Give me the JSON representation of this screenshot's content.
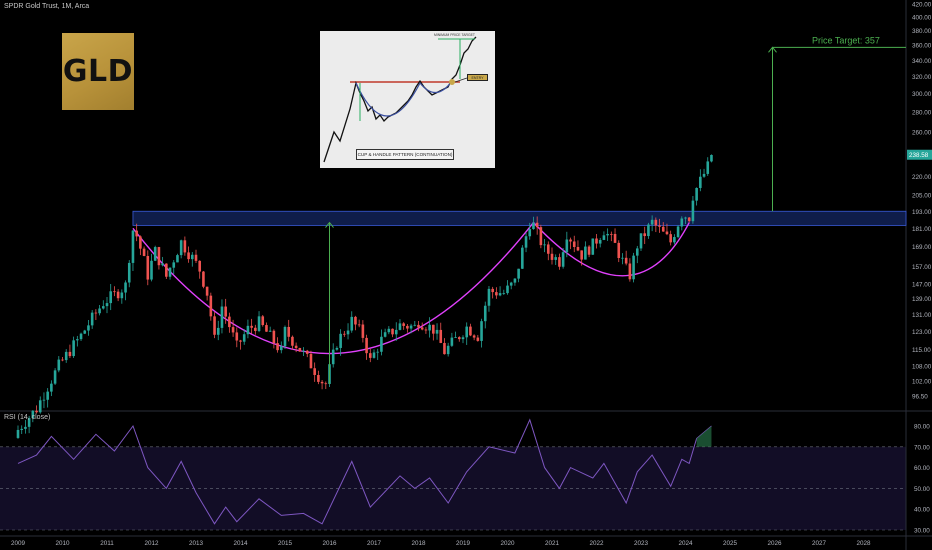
{
  "header": {
    "symbol_title": "SPDR Gold Trust, 1M, Arca",
    "rsi_title": "RSI (14, close)"
  },
  "logo": {
    "text": "GLD",
    "color": "#b8923a"
  },
  "annotations": {
    "price_target": "Price Target: 357",
    "price_target_color": "#4caf50"
  },
  "inset": {
    "caption": "CUP & HANDLE PATTERN (CONTINUATION)",
    "target_label": "MINIMUM PRICE TARGET",
    "tag_label": "ENTRY"
  },
  "chart_data": [
    {
      "type": "candlestick",
      "title": "SPDR Gold Trust, 1M, Arca",
      "y_scale": "log",
      "ylim": [
        91,
        430
      ],
      "y_ticks": [
        96.5,
        102.0,
        108.0,
        115.0,
        123.0,
        131.0,
        139.0,
        147.0,
        157.0,
        169.0,
        181.0,
        193.0,
        205.0,
        220.0,
        240.0,
        260.0,
        280.0,
        300.0,
        320.0,
        340.0,
        360.0,
        380.0,
        400.0,
        420.0
      ],
      "x_ticks": [
        "2009",
        "2010",
        "2011",
        "2012",
        "2013",
        "2014",
        "2015",
        "2016",
        "2017",
        "2018",
        "2019",
        "2020",
        "2021",
        "2022",
        "2023",
        "2024",
        "2025",
        "2026",
        "2027",
        "2028"
      ],
      "last_price": "238.58",
      "up_color": "#26a69a",
      "down_color": "#ef5350",
      "resistance_zone": [
        183,
        193
      ],
      "price_target": 357,
      "close_path": [
        [
          "2009-01",
          85
        ],
        [
          "2009-06",
          92
        ],
        [
          "2009-12",
          108
        ],
        [
          "2010-06",
          121
        ],
        [
          "2010-12",
          137
        ],
        [
          "2011-03",
          141
        ],
        [
          "2011-06",
          146
        ],
        [
          "2011-08",
          180
        ],
        [
          "2011-09",
          176
        ],
        [
          "2011-12",
          152
        ],
        [
          "2012-02",
          166
        ],
        [
          "2012-05",
          151
        ],
        [
          "2012-09",
          172
        ],
        [
          "2012-12",
          162
        ],
        [
          "2013-02",
          155
        ],
        [
          "2013-04",
          142
        ],
        [
          "2013-06",
          119
        ],
        [
          "2013-08",
          135
        ],
        [
          "2013-12",
          116
        ],
        [
          "2014-03",
          124
        ],
        [
          "2014-06",
          127
        ],
        [
          "2014-12",
          114
        ],
        [
          "2015-01",
          123
        ],
        [
          "2015-06",
          113
        ],
        [
          "2015-11",
          102
        ],
        [
          "2015-12",
          101
        ],
        [
          "2016-03",
          118
        ],
        [
          "2016-07",
          128
        ],
        [
          "2016-10",
          121
        ],
        [
          "2016-12",
          110
        ],
        [
          "2017-03",
          119
        ],
        [
          "2017-08",
          126
        ],
        [
          "2017-12",
          125
        ],
        [
          "2018-01",
          128
        ],
        [
          "2018-05",
          124
        ],
        [
          "2018-08",
          114
        ],
        [
          "2018-12",
          121
        ],
        [
          "2019-02",
          125
        ],
        [
          "2019-05",
          121
        ],
        [
          "2019-08",
          143
        ],
        [
          "2019-12",
          142
        ],
        [
          "2020-03",
          148
        ],
        [
          "2020-07",
          185
        ],
        [
          "2020-08",
          183
        ],
        [
          "2020-11",
          167
        ],
        [
          "2021-03",
          160
        ],
        [
          "2021-05",
          178
        ],
        [
          "2021-09",
          164
        ],
        [
          "2021-12",
          170
        ],
        [
          "2022-03",
          180
        ],
        [
          "2022-06",
          170
        ],
        [
          "2022-09",
          155
        ],
        [
          "2022-10",
          152
        ],
        [
          "2022-12",
          170
        ],
        [
          "2023-04",
          185
        ],
        [
          "2023-09",
          172
        ],
        [
          "2023-12",
          191
        ],
        [
          "2024-02",
          189
        ],
        [
          "2024-03",
          205
        ],
        [
          "2024-05",
          216
        ],
        [
          "2024-07",
          228
        ],
        [
          "2024-08",
          238.58
        ]
      ]
    },
    {
      "type": "line",
      "title": "RSI (14, close)",
      "ylim": [
        27,
        86
      ],
      "y_ticks": [
        30.0,
        40.0,
        50.0,
        60.0,
        70.0,
        80.0
      ],
      "overbought": 70,
      "oversold": 30,
      "line_color": "#7e57c2",
      "points": [
        [
          "2009-01",
          62
        ],
        [
          "2009-06",
          66
        ],
        [
          "2009-10",
          75
        ],
        [
          "2010-04",
          64
        ],
        [
          "2010-10",
          76
        ],
        [
          "2011-03",
          68
        ],
        [
          "2011-08",
          80
        ],
        [
          "2011-12",
          60
        ],
        [
          "2012-05",
          50
        ],
        [
          "2012-09",
          63
        ],
        [
          "2013-01",
          48
        ],
        [
          "2013-06",
          33
        ],
        [
          "2013-09",
          41
        ],
        [
          "2013-12",
          34
        ],
        [
          "2014-06",
          45
        ],
        [
          "2014-12",
          37
        ],
        [
          "2015-06",
          38
        ],
        [
          "2015-11",
          33
        ],
        [
          "2016-07",
          63
        ],
        [
          "2016-12",
          41
        ],
        [
          "2017-08",
          56
        ],
        [
          "2017-12",
          50
        ],
        [
          "2018-04",
          55
        ],
        [
          "2018-09",
          43
        ],
        [
          "2019-02",
          58
        ],
        [
          "2019-08",
          70
        ],
        [
          "2020-03",
          67
        ],
        [
          "2020-07",
          83
        ],
        [
          "2020-11",
          60
        ],
        [
          "2021-03",
          50
        ],
        [
          "2021-06",
          60
        ],
        [
          "2021-12",
          55
        ],
        [
          "2022-03",
          62
        ],
        [
          "2022-09",
          43
        ],
        [
          "2022-12",
          58
        ],
        [
          "2023-04",
          66
        ],
        [
          "2023-09",
          51
        ],
        [
          "2023-12",
          64
        ],
        [
          "2024-02",
          62
        ],
        [
          "2024-04",
          74
        ],
        [
          "2024-08",
          80
        ]
      ]
    }
  ]
}
